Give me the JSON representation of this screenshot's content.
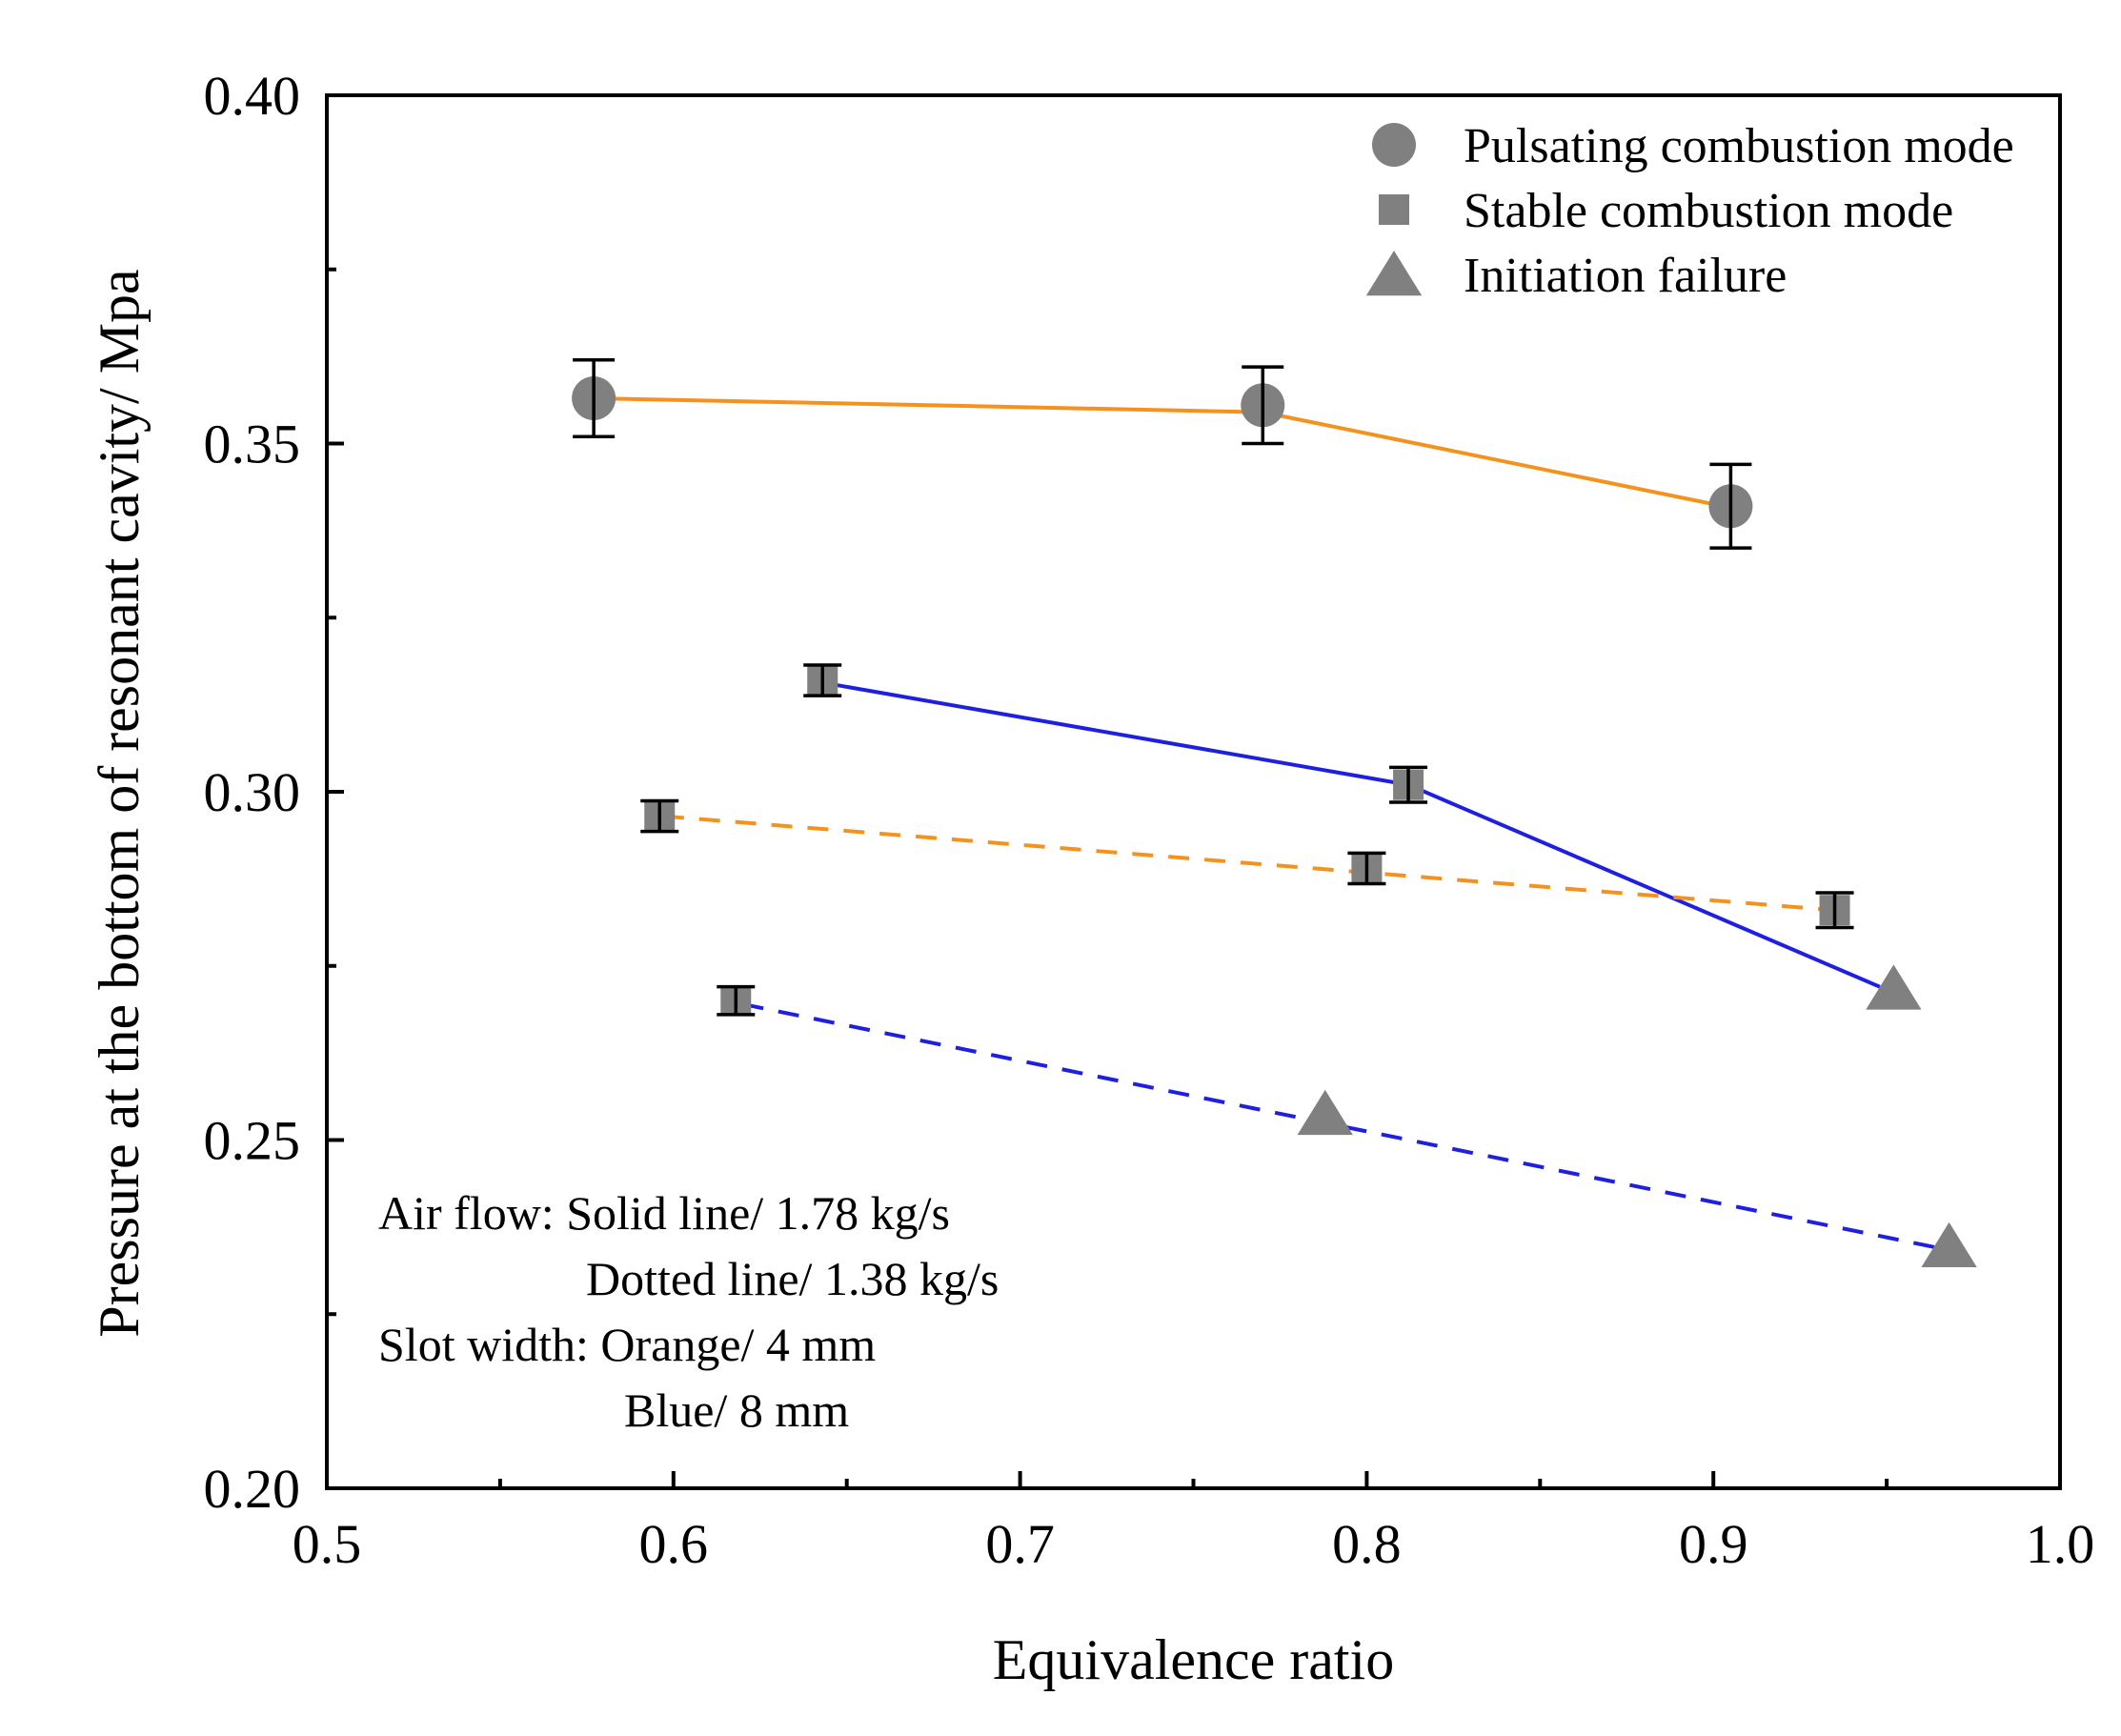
{
  "chart_data": {
    "type": "line",
    "xlabel": "Equivalence ratio",
    "ylabel": "Pressure at the bottom of resonant cavity/ Mpa",
    "xlim": [
      0.5,
      1.0
    ],
    "ylim": [
      0.2,
      0.4
    ],
    "x_ticks": [
      "0.5",
      "0.6",
      "0.7",
      "0.8",
      "0.9",
      "1.0"
    ],
    "y_ticks": [
      "0.20",
      "0.25",
      "0.30",
      "0.35",
      "0.40"
    ],
    "x_tick_values": [
      0.5,
      0.6,
      0.7,
      0.8,
      0.9,
      1.0
    ],
    "y_tick_values": [
      0.2,
      0.25,
      0.3,
      0.35,
      0.4
    ],
    "x_minor_ticks": [
      0.55,
      0.65,
      0.75,
      0.85,
      0.95
    ],
    "y_minor_ticks": [
      0.225,
      0.275,
      0.325,
      0.375
    ],
    "colors": {
      "orange": "#f5921e",
      "blue": "#1f1fe0",
      "marker": "#808080",
      "axis": "#000000"
    },
    "legend": {
      "position": "top-right",
      "items": [
        {
          "marker": "circle",
          "label": "Pulsating combustion mode"
        },
        {
          "marker": "square",
          "label": "Stable combustion mode"
        },
        {
          "marker": "triangle",
          "label": "Initiation failure"
        }
      ]
    },
    "annotations": [
      "Air flow: Solid line/ 1.78 kg/s",
      "Dotted line/ 1.38 kg/s",
      "Slot width: Orange/ 4 mm",
      "Blue/ 8 mm"
    ],
    "series": [
      {
        "name": "Orange solid (4 mm, 1.78 kg/s)",
        "color": "orange",
        "dash": false,
        "line": {
          "x": [
            0.577,
            0.77,
            0.903
          ],
          "y": [
            0.3565,
            0.3545,
            0.341
          ]
        },
        "points": [
          {
            "x": 0.577,
            "y": 0.3565,
            "marker": "circle",
            "err": 0.0055
          },
          {
            "x": 0.77,
            "y": 0.3555,
            "marker": "circle",
            "err": 0.0055
          },
          {
            "x": 0.905,
            "y": 0.341,
            "marker": "circle",
            "err": 0.006
          }
        ]
      },
      {
        "name": "Blue solid (8 mm, 1.78 kg/s)",
        "color": "blue",
        "dash": false,
        "line": {
          "x": [
            0.645,
            0.812,
            0.948
          ],
          "y": [
            0.3155,
            0.301,
            0.272
          ]
        },
        "points": [
          {
            "x": 0.643,
            "y": 0.316,
            "marker": "square",
            "err": 0.0022
          },
          {
            "x": 0.812,
            "y": 0.301,
            "marker": "square",
            "err": 0.0025
          },
          {
            "x": 0.952,
            "y": 0.2715,
            "marker": "triangle"
          }
        ]
      },
      {
        "name": "Orange dotted (4 mm, 1.38 kg/s)",
        "color": "orange",
        "dash": true,
        "line": {
          "x": [
            0.597,
            0.935
          ],
          "y": [
            0.2965,
            0.283
          ]
        },
        "points": [
          {
            "x": 0.596,
            "y": 0.2965,
            "marker": "square",
            "err": 0.0022
          },
          {
            "x": 0.8,
            "y": 0.289,
            "marker": "square",
            "err": 0.0022
          },
          {
            "x": 0.935,
            "y": 0.283,
            "marker": "square",
            "err": 0.0025
          }
        ]
      },
      {
        "name": "Blue dotted (8 mm, 1.38 kg/s)",
        "color": "blue",
        "dash": true,
        "line": {
          "x": [
            0.62,
            0.965
          ],
          "y": [
            0.2695,
            0.2345
          ]
        },
        "points": [
          {
            "x": 0.618,
            "y": 0.27,
            "marker": "square",
            "err": 0.002
          },
          {
            "x": 0.788,
            "y": 0.2535,
            "marker": "triangle"
          },
          {
            "x": 0.968,
            "y": 0.2345,
            "marker": "triangle"
          }
        ]
      }
    ]
  }
}
